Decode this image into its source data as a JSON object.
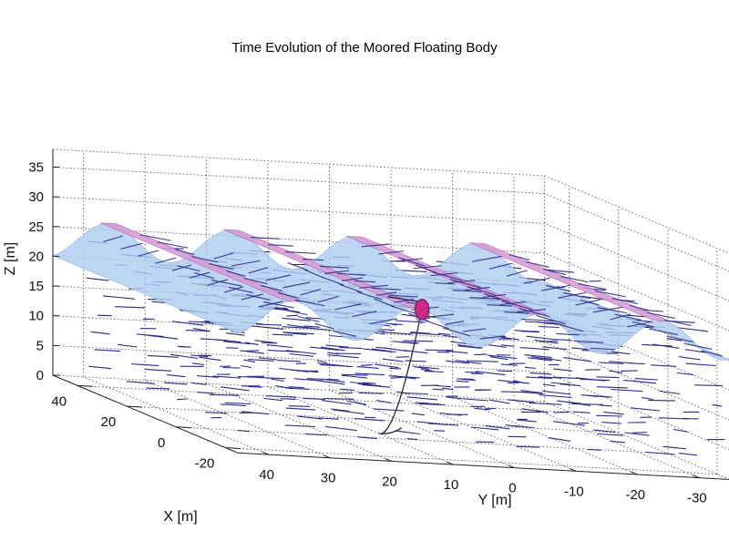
{
  "chart_data": {
    "type": "surface3d",
    "title": "Time Evolution of the Moored Floating Body",
    "xlabel": "X [m]",
    "ylabel": "Y [m]",
    "zlabel": "Z [m]",
    "x_ticks": [
      40,
      20,
      0,
      -20
    ],
    "y_ticks": [
      40,
      30,
      20,
      10,
      0,
      -10,
      -20,
      -30
    ],
    "z_ticks": [
      0,
      5,
      10,
      15,
      20,
      25,
      30,
      35
    ],
    "xlim": [
      -25,
      50
    ],
    "ylim": [
      -35,
      45
    ],
    "zlim": [
      0,
      38
    ],
    "grid": true,
    "surface": {
      "name": "free surface",
      "mean_level": 23,
      "amplitude": 3,
      "crest_count": 4,
      "fill_color": "#aecdf0",
      "crest_color": "#d598d2"
    },
    "floating_body": {
      "x": 0,
      "y": 5,
      "z": 22,
      "color": "#cf2a8a"
    },
    "mooring_line": {
      "anchor": {
        "x": 5,
        "y": 10,
        "z": 0
      },
      "color": "#333344"
    },
    "velocity_vectors": {
      "color": "#2a2a8c",
      "levels": [
        3,
        6,
        9,
        12,
        15,
        18,
        21,
        24
      ]
    }
  }
}
